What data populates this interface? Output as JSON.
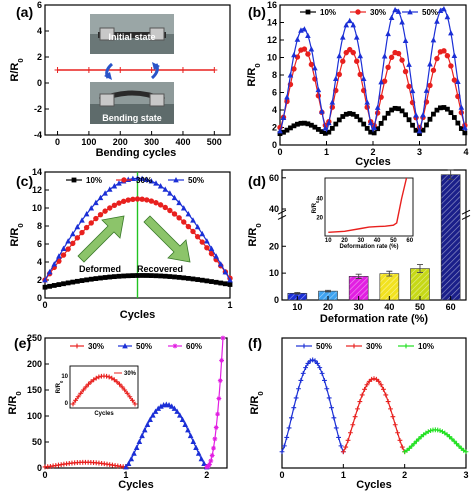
{
  "chart_data": [
    {
      "panel": "(a)",
      "type": "line",
      "xlabel": "Bending cycles",
      "ylabel": "R/R0",
      "xlim": [
        -40,
        550
      ],
      "ylim": [
        -4,
        6
      ],
      "xticks": [
        0,
        100,
        200,
        300,
        400,
        500
      ],
      "yticks": [
        -4,
        -2,
        0,
        2,
        4,
        6
      ],
      "series": [
        {
          "color": "#e8201e",
          "x": [
            0,
            100,
            200,
            300,
            400,
            500
          ],
          "values": [
            1,
            1,
            1,
            1,
            1,
            1
          ]
        }
      ],
      "annotations": [
        "Initial state",
        "Bending state"
      ]
    },
    {
      "panel": "(b)",
      "type": "line",
      "xlabel": "Cycles",
      "ylabel": "R/R0",
      "xlim": [
        0,
        4
      ],
      "ylim": [
        0,
        16
      ],
      "xticks": [
        0,
        1,
        2,
        3,
        4
      ],
      "yticks": [
        0,
        2,
        4,
        6,
        8,
        10,
        12,
        14,
        16
      ],
      "legend_position": "top",
      "series": [
        {
          "name": "10%",
          "color": "#000000",
          "marker": "square",
          "base": 1.3,
          "peaks": [
            2.5,
            3.6,
            4.2,
            4.3
          ]
        },
        {
          "name": "30%",
          "color": "#e8201e",
          "marker": "circle",
          "base": 2.0,
          "peaks": [
            11.0,
            10.9,
            10.6,
            10.8
          ]
        },
        {
          "name": "50%",
          "color": "#1b2fd6",
          "marker": "triangle",
          "base": 1.6,
          "peaks": [
            13.3,
            14.2,
            15.5,
            15.6
          ]
        }
      ]
    },
    {
      "panel": "(c)",
      "type": "line",
      "xlabel": "Cycles",
      "ylabel": "R/R0",
      "xlim": [
        0,
        1
      ],
      "ylim": [
        0,
        14
      ],
      "xticks": [
        0,
        1
      ],
      "yticks": [
        0,
        2,
        4,
        6,
        8,
        10,
        12,
        14
      ],
      "legend_position": "top",
      "series": [
        {
          "name": "10%",
          "color": "#000000",
          "marker": "square",
          "start": 1.2,
          "peak": 2.5,
          "end": 1.5
        },
        {
          "name": "30%",
          "color": "#e8201e",
          "marker": "circle",
          "start": 2.0,
          "peak": 11.0,
          "end": 2.2
        },
        {
          "name": "50%",
          "color": "#1b2fd6",
          "marker": "triangle",
          "start": 2.0,
          "peak": 13.3,
          "end": 2.0
        }
      ],
      "annotations": [
        "Deformed",
        "Recovered"
      ]
    },
    {
      "panel": "(d)",
      "type": "bar",
      "xlabel": "Deformation rate (%)",
      "ylabel": "R/R0",
      "categories": [
        "10",
        "20",
        "30",
        "40",
        "50",
        "60"
      ],
      "values": [
        2.5,
        3.3,
        8.8,
        9.8,
        11.7,
        62
      ],
      "errors": [
        0.3,
        0.3,
        0.8,
        0.9,
        1.5,
        3
      ],
      "colors": [
        "#1b2fd6",
        "#3fa3f0",
        "#e21fe2",
        "#f2e21f",
        "#c6d816",
        "#1a1f8a"
      ],
      "ylim": [
        0,
        60
      ],
      "yticks": [
        0,
        10,
        20,
        30,
        40,
        50,
        60
      ],
      "inset": {
        "type": "line",
        "xlabel": "Deformation rate (%)",
        "ylabel": "R/R0",
        "xticks": [
          10,
          20,
          30,
          40,
          50,
          60
        ],
        "yticks": [
          20,
          40
        ],
        "x": [
          10,
          20,
          30,
          35,
          40,
          45,
          50,
          52,
          55,
          58
        ],
        "values": [
          4,
          5,
          8,
          9.5,
          10,
          10.5,
          11.5,
          14,
          40,
          62
        ]
      }
    },
    {
      "panel": "(e)",
      "type": "line",
      "xlabel": "Cycles",
      "ylabel": "R/R0",
      "xlim": [
        0,
        2.25
      ],
      "ylim": [
        0,
        250
      ],
      "xticks": [
        0,
        1,
        2
      ],
      "yticks": [
        0,
        50,
        100,
        150,
        200,
        250
      ],
      "legend_position": "top",
      "series": [
        {
          "name": "30%",
          "color": "#e8201e",
          "marker": "plus",
          "x_range": [
            0,
            1
          ],
          "start": 2,
          "peak": 11,
          "end": 2
        },
        {
          "name": "50%",
          "color": "#1b2fd6",
          "marker": "triangle",
          "x_range": [
            1,
            2
          ],
          "start": 2,
          "peak": 122,
          "end": 2
        },
        {
          "name": "60%",
          "color": "#e21fe2",
          "marker": "star",
          "x_range": [
            2,
            2.2
          ],
          "start": 2,
          "end": 250
        }
      ],
      "inset": {
        "legend": "30%",
        "xlabel": "Cycles",
        "ylabel": "R/R0",
        "yticks": [
          0,
          10
        ]
      }
    },
    {
      "panel": "(f)",
      "type": "line",
      "xlabel": "Cycles",
      "ylabel": "R/R0",
      "xlim": [
        0,
        3
      ],
      "xticks": [
        0,
        1,
        2,
        3
      ],
      "legend_position": "top",
      "series": [
        {
          "name": "50%",
          "color": "#1b2fd6",
          "marker": "plus",
          "x_range": [
            0,
            1
          ],
          "start": 2,
          "peak": 13.3,
          "end": 2
        },
        {
          "name": "30%",
          "color": "#e8201e",
          "marker": "plus",
          "x_range": [
            1,
            2
          ],
          "start": 2,
          "peak": 11.0,
          "end": 2
        },
        {
          "name": "10%",
          "color": "#20e020",
          "marker": "plus",
          "x_range": [
            2,
            3
          ],
          "start": 2,
          "peak": 4.7,
          "end": 2
        }
      ]
    }
  ]
}
